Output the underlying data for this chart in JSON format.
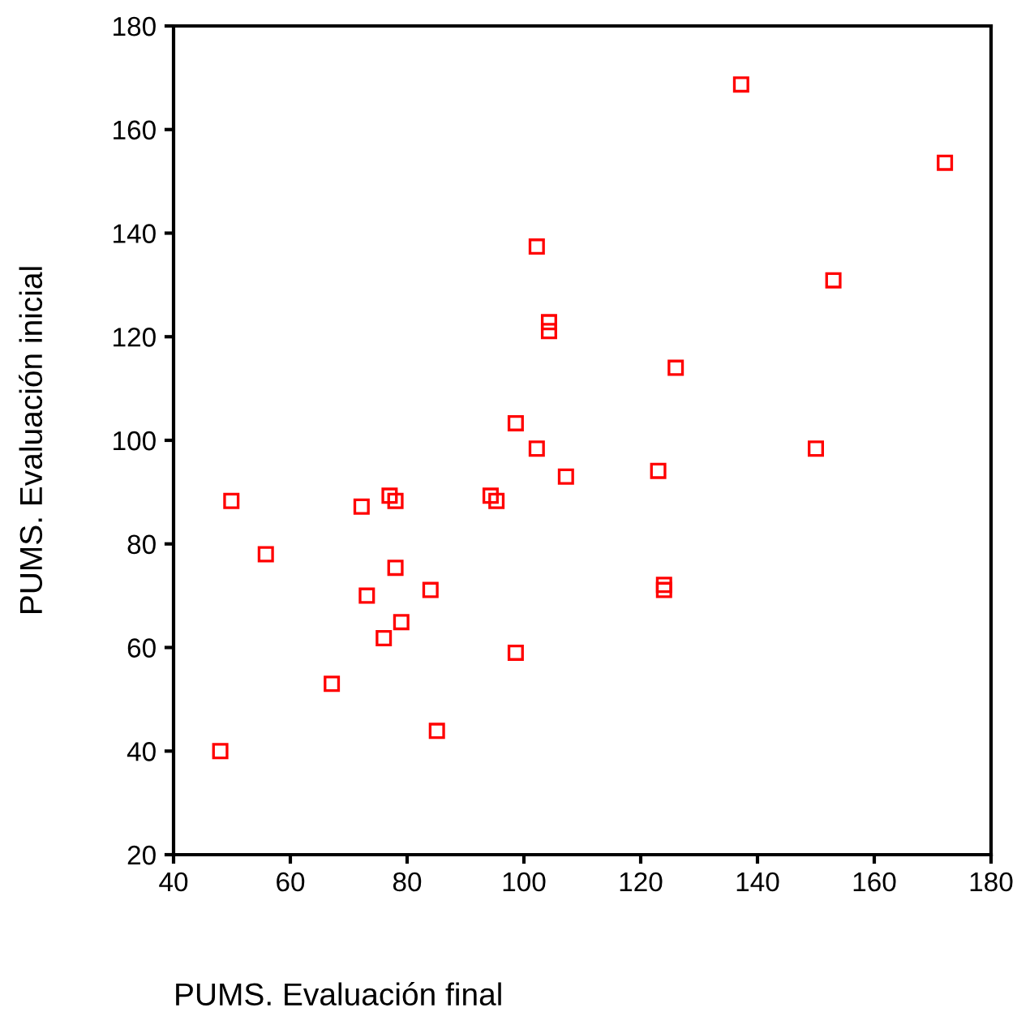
{
  "chart_data": {
    "type": "scatter",
    "xlabel": "PUMS. Evaluación final",
    "ylabel": "PUMS. Evaluación inicial",
    "x": [
      137.2,
      172.1,
      102.2,
      153.0,
      104.3,
      104.3,
      126.0,
      98.6,
      102.2,
      150.0,
      123.0,
      107.2,
      77.0,
      78.0,
      94.3,
      95.3,
      49.9,
      72.2,
      55.8,
      78.0,
      73.1,
      84.0,
      124.0,
      124.0,
      79.0,
      76.0,
      98.6,
      67.1,
      85.1,
      48.0
    ],
    "series": [
      {
        "color": "#ff0000",
        "values": [
          168.7,
          153.6,
          137.4,
          130.9,
          122.8,
          121.1,
          114.0,
          103.3,
          98.4,
          98.4,
          94.1,
          93.0,
          89.3,
          88.3,
          89.3,
          88.3,
          88.3,
          87.2,
          78.0,
          75.4,
          70.0,
          71.1,
          72.1,
          71.1,
          64.9,
          61.8,
          59.0,
          53.0,
          43.9,
          40.0
        ]
      }
    ],
    "xlim": [
      40,
      180
    ],
    "ylim": [
      20,
      180
    ],
    "xticks": [
      40,
      60,
      80,
      100,
      120,
      140,
      160,
      180
    ],
    "yticks": [
      20,
      40,
      60,
      80,
      100,
      120,
      140,
      160,
      180
    ],
    "marker": "square",
    "grid": false,
    "legend": false
  }
}
